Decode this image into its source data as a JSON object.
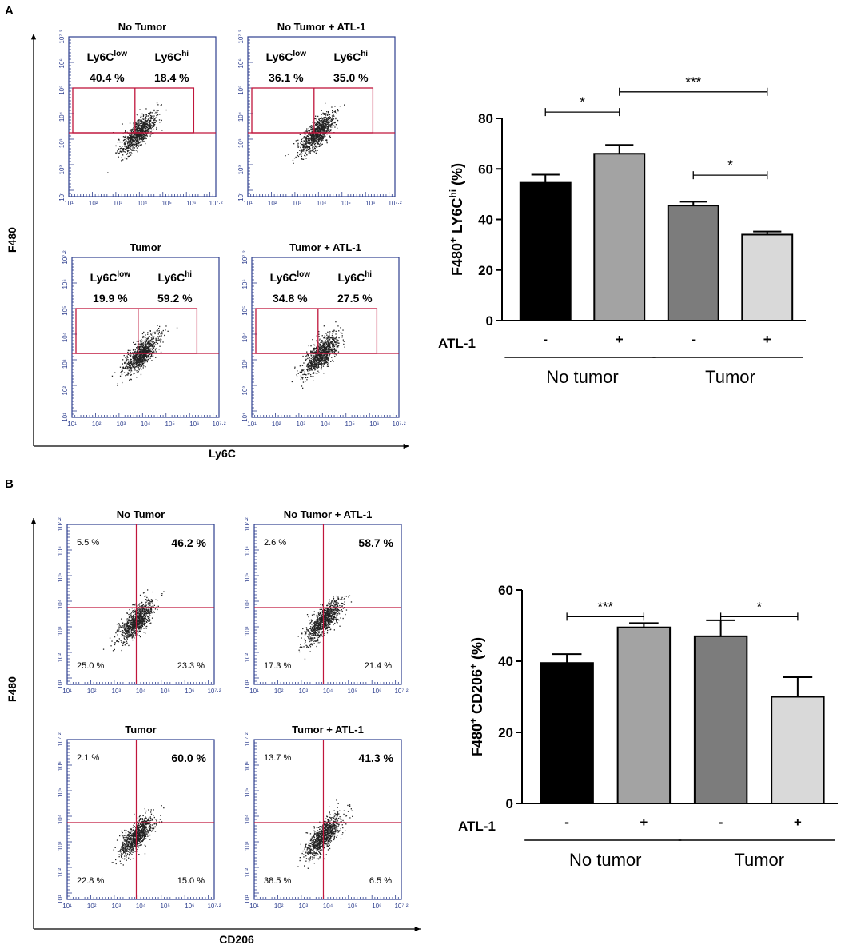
{
  "figure": {
    "panels": [
      {
        "label": "A",
        "flow_x_label": "Ly6C",
        "flow_y_label": "F480",
        "flow_axis_ticks": [
          "10¹",
          "10²",
          "10³",
          "10⁴",
          "10⁵",
          "10⁶",
          "10⁷·²"
        ],
        "flow_plots": [
          {
            "title": "No Tumor",
            "gate_labels": [
              "Ly6Clow",
              "Ly6Chi"
            ],
            "percents": [
              "40.4 %",
              "18.4 %"
            ]
          },
          {
            "title": "No Tumor + ATL-1",
            "gate_labels": [
              "Ly6Clow",
              "Ly6Chi"
            ],
            "percents": [
              "36.1 %",
              "35.0 %"
            ]
          },
          {
            "title": "Tumor",
            "gate_labels": [
              "Ly6Clow",
              "Ly6Chi"
            ],
            "percents": [
              "19.9 %",
              "59.2 %"
            ]
          },
          {
            "title": "Tumor + ATL-1",
            "gate_labels": [
              "Ly6Clow",
              "Ly6Chi"
            ],
            "percents": [
              "34.8 %",
              "27.5 %"
            ]
          }
        ]
      },
      {
        "label": "B",
        "flow_x_label": "CD206",
        "flow_y_label": "F480",
        "flow_axis_ticks": [
          "10¹",
          "10²",
          "10³",
          "10⁴",
          "10⁵",
          "10⁶",
          "10⁷·²"
        ],
        "flow_plots": [
          {
            "title": "No Tumor",
            "quadrants": [
              "5.5 %",
              "46.2 %",
              "25.0 %",
              "23.3 %"
            ]
          },
          {
            "title": "No Tumor + ATL-1",
            "quadrants": [
              "2.6 %",
              "58.7 %",
              "17.3 %",
              "21.4 %"
            ]
          },
          {
            "title": "Tumor",
            "quadrants": [
              "2.1 %",
              "60.0 %",
              "22.8 %",
              "15.0 %"
            ]
          },
          {
            "title": "Tumor + ATL-1",
            "quadrants": [
              "13.7 %",
              "41.3 %",
              "38.5 %",
              "6.5 %"
            ]
          }
        ]
      }
    ]
  },
  "chart_data": [
    {
      "type": "bar",
      "panel": "A",
      "categories": [
        "No tumor -",
        "No tumor +",
        "Tumor -",
        "Tumor +"
      ],
      "values": [
        54.5,
        66,
        45.5,
        34
      ],
      "errors": [
        3.2,
        3.5,
        1.5,
        1.2
      ],
      "colors": [
        "#000000",
        "#a3a3a3",
        "#7c7c7c",
        "#d9d9d9"
      ],
      "ylabel": "F480+ LY6Chi (%)",
      "ylabel_main": "F480",
      "ylabel_sup1": "+",
      "ylabel_mid": " LY6C",
      "ylabel_sup2": "hi",
      "ylabel_tail": " (%)",
      "ylim": [
        0,
        80
      ],
      "yticks": [
        0,
        20,
        40,
        60,
        80
      ],
      "treatment_label": "ATL-1",
      "treatment_signs": [
        "-",
        "+",
        "-",
        "+"
      ],
      "groups": [
        {
          "name": "No tumor",
          "bars": [
            0,
            1
          ]
        },
        {
          "name": "Tumor",
          "bars": [
            2,
            3
          ]
        }
      ],
      "significance": [
        {
          "from": 0,
          "to": 1,
          "label": "*",
          "level": 82.5
        },
        {
          "from": 1,
          "to": 3,
          "label": "***",
          "level": 90.5
        },
        {
          "from": 2,
          "to": 3,
          "label": "*",
          "level": 57.5
        }
      ]
    },
    {
      "type": "bar",
      "panel": "B",
      "categories": [
        "No tumor -",
        "No tumor +",
        "Tumor -",
        "Tumor +"
      ],
      "values": [
        39.5,
        49.5,
        47,
        30
      ],
      "errors": [
        2.5,
        1.2,
        4.5,
        5.5
      ],
      "colors": [
        "#000000",
        "#a3a3a3",
        "#7c7c7c",
        "#d9d9d9"
      ],
      "ylabel": "F480+ CD206+ (%)",
      "ylabel_main": "F480",
      "ylabel_sup1": "+",
      "ylabel_mid": " CD206",
      "ylabel_sup2": "+",
      "ylabel_tail": " (%)",
      "ylim": [
        0,
        60
      ],
      "yticks": [
        0,
        20,
        40,
        60
      ],
      "treatment_label": "ATL-1",
      "treatment_signs": [
        "-",
        "+",
        "-",
        "+"
      ],
      "groups": [
        {
          "name": "No tumor",
          "bars": [
            0,
            1
          ]
        },
        {
          "name": "Tumor",
          "bars": [
            2,
            3
          ]
        }
      ],
      "significance": [
        {
          "from": 0,
          "to": 1,
          "label": "***",
          "level": 52.5
        },
        {
          "from": 2,
          "to": 3,
          "label": "*",
          "level": 52.5
        }
      ]
    }
  ]
}
